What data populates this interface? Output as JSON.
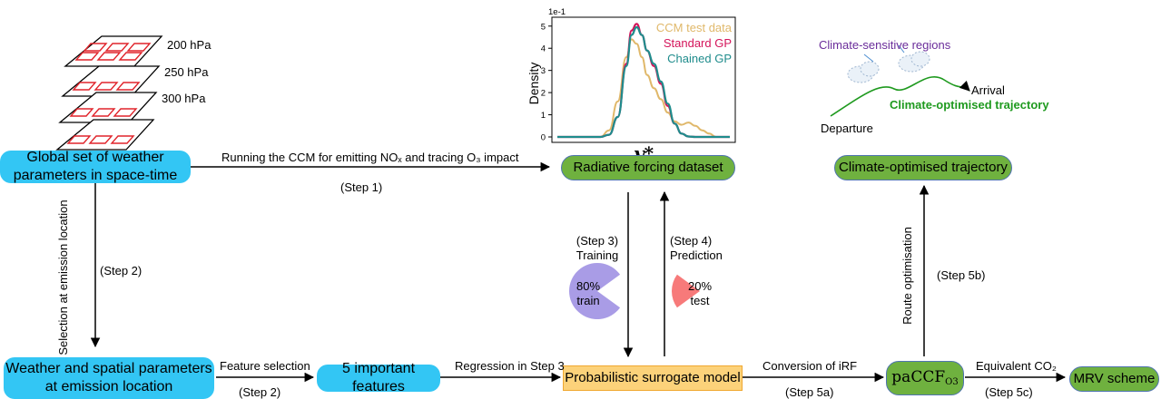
{
  "layers": {
    "labels": [
      "200 hPa",
      "250 hPa",
      "300 hPa"
    ]
  },
  "nodes": {
    "global_weather": "Global set of weather parameters in space-time",
    "weather_spatial": "Weather and spatial parameters at emission location",
    "important_features": "5 important features",
    "surrogate_model": "Probabilistic surrogate model",
    "radiative_forcing": "Radiative forcing dataset",
    "climate_trajectory": "Climate-optimised trajectory",
    "paccf": "paCCF",
    "paccf_sub": "O3",
    "mrv_scheme": "MRV scheme"
  },
  "edges": {
    "running_ccm": "Running the CCM for emitting NOₓ and tracing O₃ impact",
    "step1": "(Step 1)",
    "selection": "Selection at emission location",
    "step2": "(Step 2)",
    "feature_selection": "Feature selection",
    "feature_step": "(Step 2)",
    "regression": "Regression in Step 3",
    "step3": "(Step 3)",
    "training": "Training",
    "step4": "(Step 4)",
    "prediction": "Prediction",
    "conversion": "Conversion of iRF",
    "step5a": "(Step 5a)",
    "route_opt": "Route optimisation",
    "step5b": "(Step 5b)",
    "equivalent": "Equivalent CO₂",
    "step5c": "(Step 5c)"
  },
  "pies": {
    "train_pct": "80%",
    "train_label": "train",
    "train_fraction": 0.8,
    "test_pct": "20%",
    "test_label": "test",
    "test_fraction": 0.2
  },
  "trajectory": {
    "regions_label": "Climate-sensitive regions",
    "arrival": "Arrival",
    "title": "Climate-optimised trajectory",
    "departure": "Departure"
  },
  "colors": {
    "cyan": "#33c6f4",
    "green": "#6fb13f",
    "yellow": "#fcd27a",
    "purple": "#a99ce6",
    "red": "#f77a7a",
    "traj_green": "#1f9a1f",
    "region_purple": "#6a2c9a"
  },
  "chart_data": {
    "type": "line",
    "ylabel": "Density",
    "xlabel": "y*",
    "scale_label": "1e-1",
    "yticks": [
      0,
      1,
      2,
      3,
      4,
      5
    ],
    "ylim": [
      0,
      5.4
    ],
    "xlim": [
      0,
      1
    ],
    "legend_position": "top-right",
    "series": [
      {
        "name": "CCM test data",
        "color": "#e0b86a",
        "x": [
          0.0,
          0.25,
          0.3,
          0.35,
          0.4,
          0.43,
          0.46,
          0.49,
          0.52,
          0.56,
          0.6,
          0.64,
          0.68,
          0.72,
          0.76,
          0.8,
          0.84,
          0.88,
          0.92,
          1.0
        ],
        "y": [
          0.0,
          0.0,
          0.3,
          1.6,
          3.6,
          4.4,
          4.2,
          3.6,
          2.8,
          2.2,
          1.7,
          1.1,
          0.7,
          0.55,
          0.65,
          0.5,
          0.3,
          0.15,
          0.0,
          0.0
        ]
      },
      {
        "name": "Standard GP",
        "color": "#d4145a",
        "x": [
          0.0,
          0.25,
          0.3,
          0.35,
          0.4,
          0.43,
          0.46,
          0.49,
          0.52,
          0.56,
          0.6,
          0.64,
          0.68,
          0.72,
          0.76,
          0.8,
          1.0
        ],
        "y": [
          0.0,
          0.0,
          0.1,
          0.9,
          3.3,
          4.8,
          5.1,
          4.6,
          3.9,
          3.2,
          2.4,
          1.4,
          0.6,
          0.15,
          0.02,
          0.0,
          0.0
        ]
      },
      {
        "name": "Chained GP",
        "color": "#1f8c8c",
        "x": [
          0.0,
          0.25,
          0.3,
          0.35,
          0.4,
          0.43,
          0.46,
          0.49,
          0.52,
          0.56,
          0.6,
          0.64,
          0.68,
          0.72,
          0.76,
          0.8,
          1.0
        ],
        "y": [
          0.0,
          0.0,
          0.1,
          0.9,
          3.2,
          4.6,
          4.95,
          4.6,
          3.9,
          3.3,
          2.5,
          1.5,
          0.6,
          0.15,
          0.02,
          0.0,
          0.0
        ]
      }
    ]
  }
}
